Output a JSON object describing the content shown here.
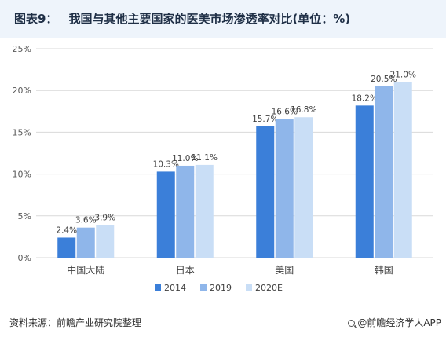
{
  "header": {
    "figure_label": "图表9：",
    "title": "我国与其他主要国家的医美市场渗透率对比(单位：%)"
  },
  "footer": {
    "source_label": "资料来源：",
    "source_text": "前瞻产业研究院整理",
    "credit": "@前瞻经济学人APP"
  },
  "colors": {
    "s2014": "#3b7fd9",
    "s2019": "#8fb6ea",
    "s2020E": "#c9def6",
    "grid": "#d9d9d9",
    "tick_text": "#595959"
  },
  "chart_data": {
    "type": "bar",
    "categories": [
      "中国大陆",
      "日本",
      "美国",
      "韩国"
    ],
    "series": [
      {
        "name": "2014",
        "values": [
          2.4,
          10.3,
          15.7,
          18.2
        ],
        "labels": [
          "2.4%",
          "10.3%",
          "15.7%",
          "18.2%"
        ]
      },
      {
        "name": "2019",
        "values": [
          3.6,
          11.0,
          16.6,
          20.5
        ],
        "labels": [
          "3.6%",
          "11.0%",
          "16.6%",
          "20.5%"
        ]
      },
      {
        "name": "2020E",
        "values": [
          3.9,
          11.1,
          16.8,
          21.0
        ],
        "labels": [
          "3.9%",
          "11.1%",
          "16.8%",
          "21.0%"
        ]
      }
    ],
    "ylim": [
      0,
      25
    ],
    "yticks": [
      0,
      5,
      10,
      15,
      20,
      25
    ],
    "ytick_labels": [
      "0%",
      "5%",
      "10%",
      "15%",
      "20%",
      "25%"
    ],
    "grid": true,
    "legend_position": "bottom"
  }
}
